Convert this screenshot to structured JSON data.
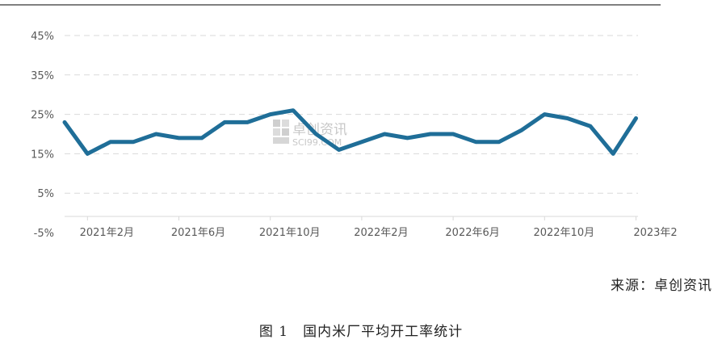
{
  "chart_data": {
    "type": "line",
    "y_ticks": [
      "45%",
      "35%",
      "25%",
      "15%",
      "5%",
      "-5%"
    ],
    "y_tick_values": [
      45,
      35,
      25,
      15,
      5,
      -5
    ],
    "ylim": [
      -5,
      45
    ],
    "x_ticks": [
      "2021年2月",
      "2021年6月",
      "2021年10月",
      "2022年2月",
      "2022年6月",
      "2022年10月",
      "2023年2"
    ],
    "x_tick_indices": [
      1,
      5,
      9,
      13,
      17,
      21,
      25
    ],
    "grid": true,
    "legend": "none",
    "color": "#1f6e98",
    "series": [
      {
        "values": [
          23,
          15,
          18,
          18,
          20,
          19,
          19,
          23,
          23,
          25,
          26,
          20,
          16,
          18,
          20,
          19,
          20,
          20,
          18,
          18,
          21,
          25,
          24,
          22,
          15,
          24
        ]
      }
    ]
  },
  "watermark": {
    "text": "卓创资讯",
    "subtext": "SCI99.COM"
  },
  "source_label": "来源：卓创资讯",
  "caption": "图 1　国内米厂平均开工率统计"
}
